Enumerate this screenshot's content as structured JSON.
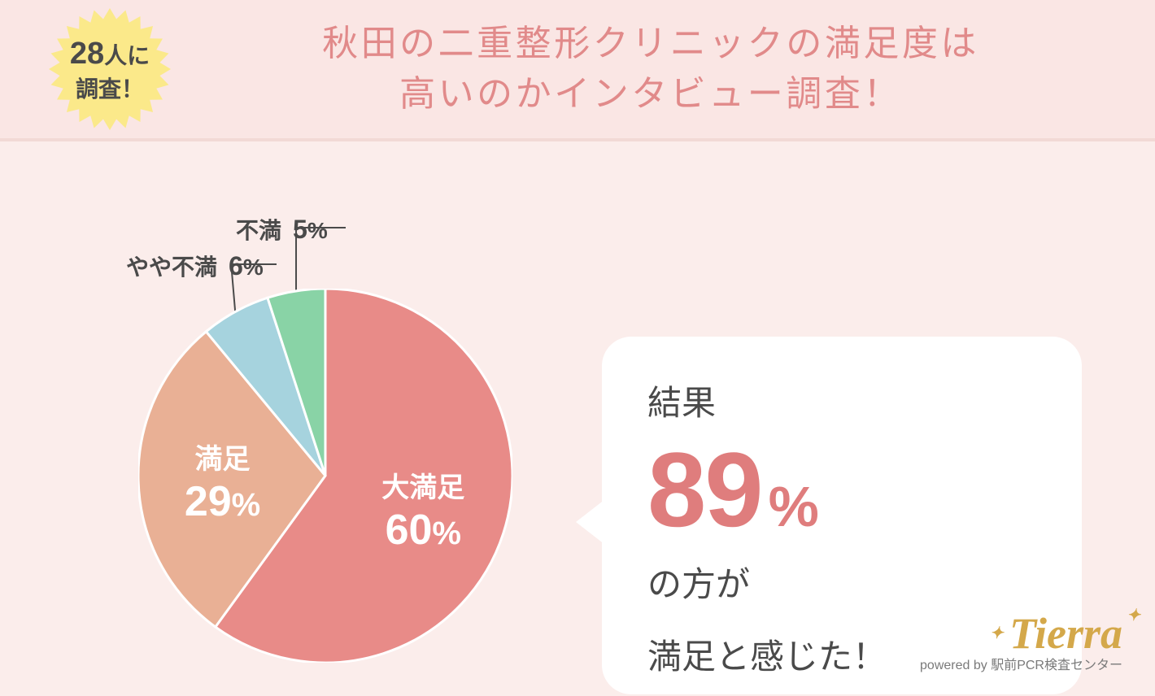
{
  "colors": {
    "header_bg": "#fae6e4",
    "body_bg": "#fbedeb",
    "divider": "#f2d9d5",
    "title_text": "#e18a8a",
    "badge_fill": "#fbe98a",
    "badge_text": "#4a4a4a",
    "bubble_bg": "#ffffff",
    "body_text": "#4a4a4a",
    "accent": "#df7d7d",
    "logo_text": "#d4a84a",
    "logo_sub": "#7a7a7a"
  },
  "badge": {
    "number": "28",
    "suffix": "人に",
    "line2": "調査！"
  },
  "title_line1": "秋田の二重整形クリニックの満足度は",
  "title_line2": "高いのかインタビュー調査！",
  "pie": {
    "type": "pie",
    "radius": 230,
    "stroke": "#ffffff",
    "stroke_width": 3,
    "slices": [
      {
        "label": "大満足",
        "value": 60,
        "color": "#e88b88",
        "text_color": "#ffffff",
        "label_fontsize": 34,
        "pct_fontsize": 40
      },
      {
        "label": "満足",
        "value": 29,
        "color": "#e9b095",
        "text_color": "#ffffff",
        "label_fontsize": 34,
        "pct_fontsize": 40
      },
      {
        "label": "やや不満",
        "value": 6,
        "color": "#a6d3de",
        "text_color": "#4a4a4a",
        "external": true,
        "ext_fontsize": 28
      },
      {
        "label": "不満",
        "value": 5,
        "color": "#89d3a6",
        "text_color": "#4a4a4a",
        "external": true,
        "ext_fontsize": 28
      }
    ]
  },
  "result": {
    "line1": "結果",
    "big_number": "89",
    "big_unit": "%",
    "line3": "の方が",
    "line4": "満足と感じた！"
  },
  "logo": {
    "brand": "Tierra",
    "sub_prefix": "powered by ",
    "sub_name": "駅前PCR検査センター"
  }
}
